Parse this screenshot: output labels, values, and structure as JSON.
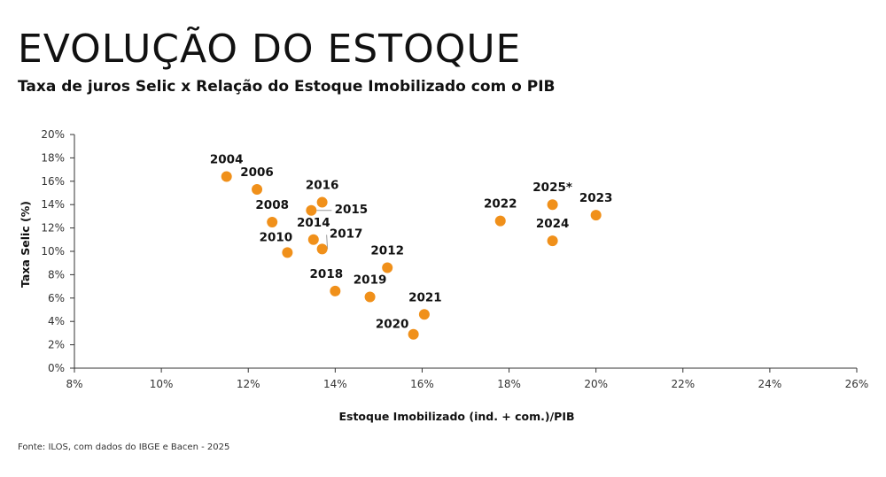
{
  "title": "EVOLUÇÃO DO ESTOQUE",
  "subtitle": "Taxa de juros Selic x Relação do Estoque Imobilizado com o PIB",
  "source": "Fonte: ILOS, com dados do IBGE e Bacen - 2025",
  "colors": {
    "point": "#F0901A",
    "axis": "#333333",
    "leader": "#9a9a9a"
  },
  "chart_data": {
    "type": "scatter",
    "xlabel": "Estoque Imobilizado (ind. + com.)/PIB",
    "ylabel": "Taxa Selic (%)",
    "xlim": [
      8,
      26
    ],
    "ylim": [
      0,
      20
    ],
    "xticks": [
      8,
      10,
      12,
      14,
      16,
      18,
      20,
      22,
      24,
      26
    ],
    "yticks": [
      0,
      2,
      4,
      6,
      8,
      10,
      12,
      14,
      16,
      18,
      20
    ],
    "tick_suffix": "%",
    "grid": false,
    "points": [
      {
        "label": "2004",
        "x": 11.5,
        "y": 16.4
      },
      {
        "label": "2006",
        "x": 12.2,
        "y": 15.3
      },
      {
        "label": "2008",
        "x": 12.55,
        "y": 12.5
      },
      {
        "label": "2010",
        "x": 12.9,
        "y": 9.9
      },
      {
        "label": "2014",
        "x": 13.5,
        "y": 11.0
      },
      {
        "label": "2015",
        "x": 13.45,
        "y": 13.5
      },
      {
        "label": "2016",
        "x": 13.7,
        "y": 14.2
      },
      {
        "label": "2017",
        "x": 13.7,
        "y": 10.2
      },
      {
        "label": "2018",
        "x": 14.0,
        "y": 6.6
      },
      {
        "label": "2019",
        "x": 14.8,
        "y": 6.1
      },
      {
        "label": "2012",
        "x": 15.2,
        "y": 8.6
      },
      {
        "label": "2020",
        "x": 15.8,
        "y": 2.9
      },
      {
        "label": "2021",
        "x": 16.05,
        "y": 4.6
      },
      {
        "label": "2022",
        "x": 17.8,
        "y": 12.6
      },
      {
        "label": "2023",
        "x": 20.0,
        "y": 13.1
      },
      {
        "label": "2024",
        "x": 19.0,
        "y": 10.9
      },
      {
        "label": "2025*",
        "x": 19.0,
        "y": 14.0
      }
    ]
  }
}
